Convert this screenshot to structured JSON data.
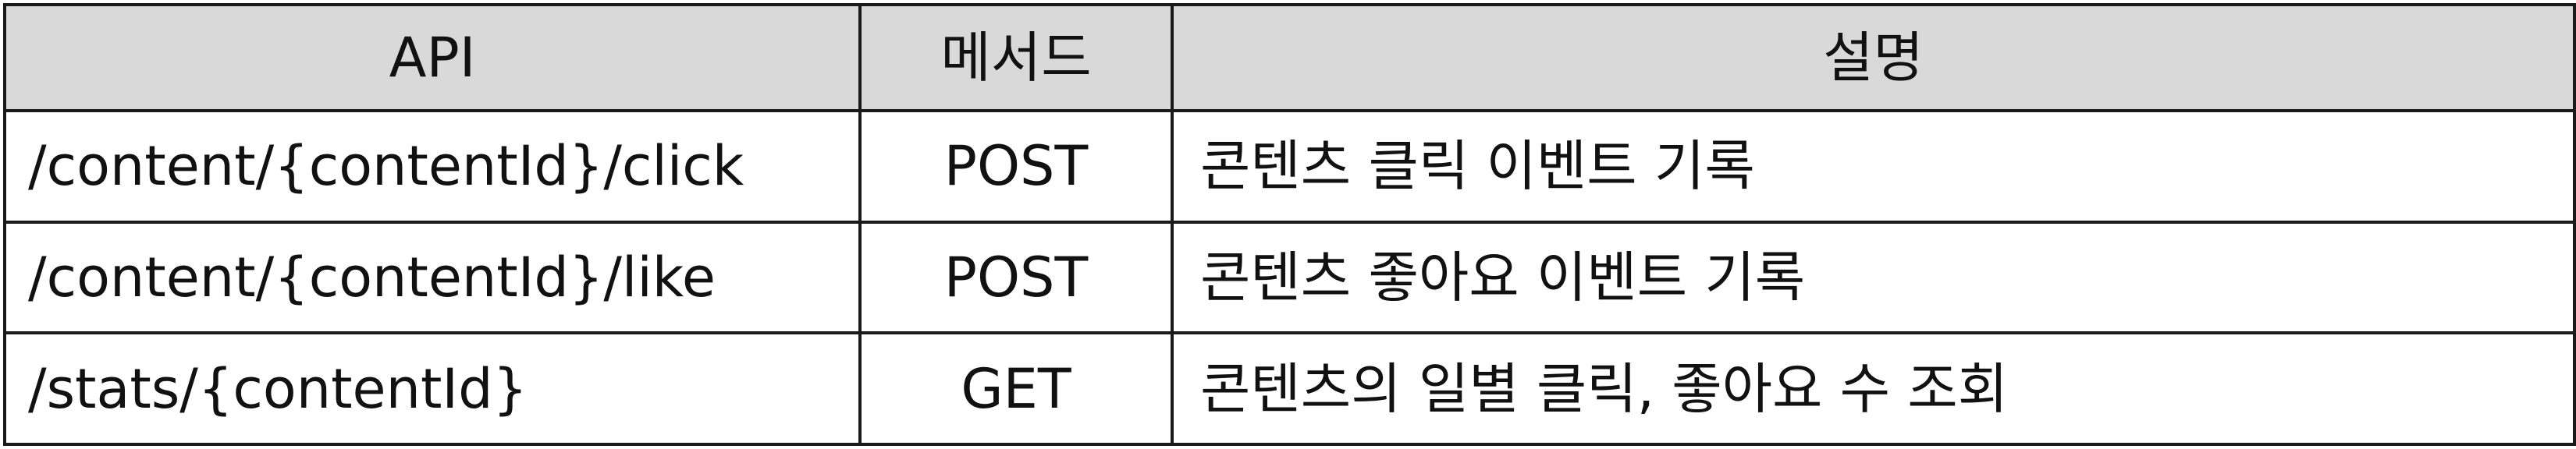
{
  "table": {
    "headers": {
      "api": "API",
      "method": "메서드",
      "description": "설명"
    },
    "rows": [
      {
        "api": "/content/{contentId}/click",
        "method": "POST",
        "description": "콘텐츠 클릭 이벤트 기록"
      },
      {
        "api": "/content/{contentId}/like",
        "method": "POST",
        "description": "콘텐츠 좋아요 이벤트 기록"
      },
      {
        "api": "/stats/{contentId}",
        "method": "GET",
        "description": "콘텐츠의 일별 클릭, 좋아요 수 조회"
      }
    ]
  },
  "colors": {
    "header_background": "#d9d9d9",
    "border": "#1a1a1a",
    "text": "#111111"
  }
}
